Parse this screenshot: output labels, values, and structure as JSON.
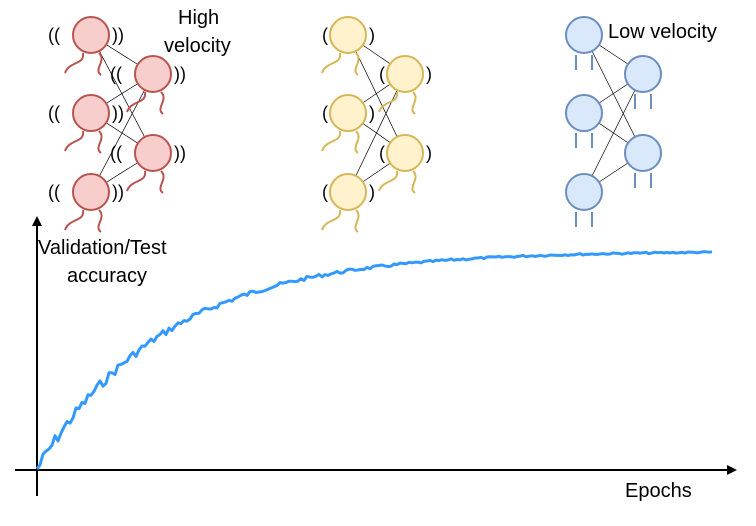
{
  "labels": {
    "high_velocity_line1": "High",
    "high_velocity_line2": "velocity",
    "low_velocity": "Low velocity",
    "y_axis_line1": "Validation/Test",
    "y_axis_line2": "accuracy",
    "x_axis": "Epochs"
  },
  "wave_glyph_left": "((",
  "wave_glyph_right": "))",
  "wave_glyph_single_left": "(",
  "wave_glyph_single_right": ")",
  "colors": {
    "red_fill": "#f8cecc",
    "red_stroke": "#b85450",
    "yellow_fill": "#fff2cc",
    "yellow_stroke": "#d6b656",
    "blue_fill": "#dae8fc",
    "blue_stroke": "#6c8ebf",
    "curve": "#3399ff"
  },
  "networks": [
    {
      "id": "high-velocity",
      "color": "red",
      "legs": "wiggly",
      "waves": "double"
    },
    {
      "id": "medium-velocity",
      "color": "yellow",
      "legs": "wiggly",
      "waves": "single"
    },
    {
      "id": "low-velocity",
      "color": "blue",
      "legs": "straight",
      "waves": "none"
    }
  ]
}
